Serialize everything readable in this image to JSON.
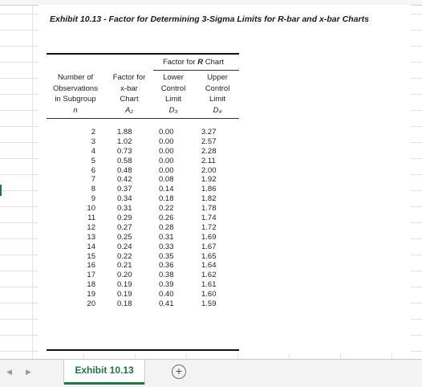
{
  "title": "Exhibit 10.13 - Factor for Determining 3-Sigma Limits for R-bar and x-bar Charts",
  "table": {
    "group_header_prefix": "Factor for",
    "group_header_symbol": "R",
    "group_header_suffix": "Chart",
    "columns": [
      {
        "label": [
          "Number of",
          "Observations",
          "in Subgroup"
        ],
        "symbol": "n"
      },
      {
        "label": [
          "Factor for",
          "x-bar",
          "Chart"
        ],
        "symbol": "A₂"
      },
      {
        "label": [
          "Lower",
          "Control",
          "Limit"
        ],
        "symbol": "D₃"
      },
      {
        "label": [
          "Upper",
          "Control",
          "Limit"
        ],
        "symbol": "D₄"
      }
    ],
    "rows": [
      [
        "2",
        "1.88",
        "0.00",
        "3.27"
      ],
      [
        "3",
        "1.02",
        "0.00",
        "2.57"
      ],
      [
        "4",
        "0.73",
        "0.00",
        "2.28"
      ],
      [
        "5",
        "0.58",
        "0.00",
        "2.11"
      ],
      [
        "6",
        "0.48",
        "0.00",
        "2.00"
      ],
      [
        "7",
        "0.42",
        "0.08",
        "1.92"
      ],
      [
        "8",
        "0.37",
        "0.14",
        "1.86"
      ],
      [
        "9",
        "0.34",
        "0.18",
        "1.82"
      ],
      [
        "10",
        "0.31",
        "0.22",
        "1.78"
      ],
      [
        "11",
        "0.29",
        "0.26",
        "1.74"
      ],
      [
        "12",
        "0.27",
        "0.28",
        "1.72"
      ],
      [
        "13",
        "0.25",
        "0.31",
        "1.69"
      ],
      [
        "14",
        "0.24",
        "0.33",
        "1.67"
      ],
      [
        "15",
        "0.22",
        "0.35",
        "1.65"
      ],
      [
        "16",
        "0.21",
        "0.36",
        "1.64"
      ],
      [
        "17",
        "0.20",
        "0.38",
        "1.62"
      ],
      [
        "18",
        "0.19",
        "0.39",
        "1.61"
      ],
      [
        "19",
        "0.19",
        "0.40",
        "1.60"
      ],
      [
        "20",
        "0.18",
        "0.41",
        "1.59"
      ]
    ]
  },
  "tabbar": {
    "active_tab": "Exhibit 10.13",
    "add_sheet_glyph": "+",
    "nav_left_glyph": "◀",
    "nav_right_glyph": "▶",
    "accent_color": "#217346"
  }
}
